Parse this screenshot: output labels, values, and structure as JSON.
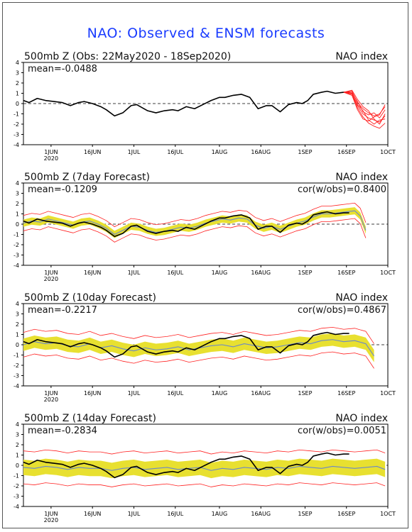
{
  "page_title": "NAO: Observed & ENSM forecasts",
  "colors": {
    "title": "#1a3cff",
    "observed": "#000000",
    "forecast_members": "#ff2020",
    "ensemble_mean": "#6a88c8",
    "spread": "#e8e030"
  },
  "chart_data": [
    {
      "type": "line",
      "title": "500mb Z (Obs: 22May2020 - 18Sep2020)",
      "right_label": "NAO index",
      "mean_label": "mean=-0.0488",
      "cor_label": "",
      "ylim": [
        -4,
        4
      ],
      "yticks": [
        "4",
        "3",
        "2",
        "1",
        "0",
        "-1",
        "-2",
        "-3",
        "-4"
      ],
      "x_ticks": [
        "1JUN",
        "16JUN",
        "1JUL",
        "16JUL",
        "1AUG",
        "16AUG",
        "1SEP",
        "16SEP",
        "1OCT"
      ],
      "x_year": "2020",
      "x_range_days": [
        0,
        132
      ],
      "series": [
        {
          "role": "observed",
          "x": [
            0,
            2,
            5,
            8,
            11,
            14,
            17,
            20,
            22,
            25,
            28,
            30,
            33,
            36,
            39,
            41,
            43,
            45,
            48,
            51,
            54,
            56,
            59,
            62,
            65,
            68,
            71,
            73,
            76,
            79,
            82,
            85,
            88,
            90,
            93,
            96,
            99,
            101,
            103,
            105,
            108,
            110,
            113,
            116,
            118
          ],
          "y": [
            0.3,
            0.1,
            0.5,
            0.3,
            0.2,
            0.1,
            -0.2,
            0.1,
            0.2,
            0.0,
            -0.3,
            -0.6,
            -1.2,
            -0.9,
            -0.2,
            -0.1,
            -0.4,
            -0.7,
            -0.9,
            -0.7,
            -0.6,
            -0.7,
            -0.3,
            -0.5,
            -0.1,
            0.3,
            0.6,
            0.6,
            0.8,
            0.9,
            0.6,
            -0.5,
            -0.2,
            -0.2,
            -0.8,
            -0.1,
            0.1,
            0.0,
            0.3,
            0.9,
            1.1,
            1.2,
            1.0,
            1.1,
            1.1
          ]
        },
        {
          "role": "forecast_members",
          "x": [
            116,
            119,
            121,
            123,
            125,
            127,
            129,
            131
          ],
          "y": [
            1.1,
            1.0,
            -0.2,
            -1.0,
            -1.4,
            -1.6,
            -1.8,
            -1.2
          ]
        },
        {
          "role": "forecast_members",
          "x": [
            116,
            119,
            121,
            123,
            125,
            127,
            129,
            131
          ],
          "y": [
            1.1,
            1.2,
            0.1,
            -0.5,
            -0.9,
            -1.2,
            -1.0,
            -0.3
          ]
        },
        {
          "role": "forecast_members",
          "x": [
            116,
            119,
            121,
            123,
            125,
            127,
            129,
            131
          ],
          "y": [
            1.1,
            0.9,
            -0.4,
            -1.3,
            -1.9,
            -2.2,
            -2.4,
            -1.9
          ]
        },
        {
          "role": "forecast_members",
          "x": [
            116,
            119,
            121,
            123,
            125,
            127,
            129,
            131
          ],
          "y": [
            1.1,
            1.1,
            0.2,
            -0.8,
            -1.1,
            -0.9,
            -1.4,
            -0.6
          ]
        },
        {
          "role": "forecast_members",
          "x": [
            116,
            119,
            121,
            123,
            125,
            127,
            129,
            131
          ],
          "y": [
            1.1,
            1.0,
            -0.1,
            -0.7,
            -1.6,
            -2.0,
            -1.6,
            -1.5
          ]
        },
        {
          "role": "forecast_members",
          "x": [
            116,
            119,
            121,
            123,
            125,
            127,
            129,
            131
          ],
          "y": [
            1.1,
            1.3,
            0.4,
            -0.3,
            -0.7,
            -1.5,
            -2.0,
            -1.0
          ]
        },
        {
          "role": "forecast_members",
          "x": [
            116,
            119,
            121,
            123,
            125,
            127,
            129,
            131
          ],
          "y": [
            1.1,
            0.8,
            -0.6,
            -1.5,
            -1.7,
            -1.3,
            -1.1,
            -0.1
          ]
        }
      ]
    },
    {
      "type": "line",
      "title": "500mb Z (7day Forecast)",
      "right_label": "NAO index",
      "mean_label": "mean=-0.1209",
      "cor_label": "cor(w/obs)=0.8400",
      "ylim": [
        -4,
        4
      ],
      "yticks": [
        "4",
        "3",
        "2",
        "1",
        "0",
        "-1",
        "-2",
        "-3",
        "-4"
      ],
      "x_ticks": [
        "1JUN",
        "16JUN",
        "1JUL",
        "16JUL",
        "1AUG",
        "16AUG",
        "1SEP",
        "16SEP",
        "1OCT"
      ],
      "x_year": "2020",
      "x_range_days": [
        0,
        132
      ],
      "spread_width": 0.35,
      "member_offset": 0.75,
      "series": [
        {
          "role": "ensemble_mean",
          "x": [
            0,
            3,
            6,
            9,
            12,
            15,
            18,
            21,
            24,
            27,
            30,
            33,
            36,
            39,
            42,
            45,
            48,
            51,
            54,
            57,
            60,
            63,
            66,
            69,
            72,
            75,
            78,
            81,
            84,
            87,
            90,
            93,
            96,
            99,
            102,
            105,
            108,
            111,
            114,
            117,
            120,
            122,
            124
          ],
          "y": [
            0.1,
            0.3,
            0.2,
            0.5,
            0.3,
            0.1,
            -0.1,
            0.2,
            0.3,
            0.0,
            -0.4,
            -1.0,
            -0.6,
            -0.2,
            -0.3,
            -0.6,
            -0.8,
            -0.7,
            -0.5,
            -0.3,
            -0.4,
            -0.2,
            0.1,
            0.3,
            0.5,
            0.4,
            0.6,
            0.5,
            -0.1,
            -0.4,
            -0.2,
            -0.5,
            -0.2,
            0.1,
            0.3,
            0.7,
            1.0,
            1.0,
            1.1,
            1.2,
            1.3,
            0.8,
            -0.6
          ]
        },
        {
          "role": "observed",
          "x": [
            0,
            2,
            5,
            8,
            11,
            14,
            17,
            20,
            22,
            25,
            28,
            30,
            33,
            36,
            39,
            41,
            43,
            45,
            48,
            51,
            54,
            56,
            59,
            62,
            65,
            68,
            71,
            73,
            76,
            79,
            82,
            85,
            88,
            90,
            93,
            96,
            99,
            101,
            103,
            105,
            108,
            110,
            113,
            116,
            118
          ],
          "y": [
            0.3,
            0.1,
            0.5,
            0.3,
            0.2,
            0.1,
            -0.2,
            0.1,
            0.2,
            0.0,
            -0.3,
            -0.6,
            -1.2,
            -0.9,
            -0.2,
            -0.1,
            -0.4,
            -0.7,
            -0.9,
            -0.7,
            -0.6,
            -0.7,
            -0.3,
            -0.5,
            -0.1,
            0.3,
            0.6,
            0.6,
            0.8,
            0.9,
            0.6,
            -0.5,
            -0.2,
            -0.2,
            -0.8,
            -0.1,
            0.1,
            0.0,
            0.3,
            0.9,
            1.1,
            1.2,
            1.0,
            1.1,
            1.1
          ]
        }
      ]
    },
    {
      "type": "line",
      "title": "500mb Z (10day Forecast)",
      "right_label": "NAO index",
      "mean_label": "mean=-0.2217",
      "cor_label": "cor(w/obs)=0.4867",
      "ylim": [
        -4,
        4
      ],
      "yticks": [
        "4",
        "3",
        "2",
        "1",
        "0",
        "-1",
        "-2",
        "-3",
        "-4"
      ],
      "x_ticks": [
        "1JUN",
        "16JUN",
        "1JUL",
        "16JUL",
        "1AUG",
        "16AUG",
        "1SEP",
        "16SEP",
        "1OCT"
      ],
      "x_year": "2020",
      "x_range_days": [
        0,
        132
      ],
      "spread_width": 0.6,
      "member_offset": 1.2,
      "series": [
        {
          "role": "ensemble_mean",
          "x": [
            0,
            4,
            8,
            12,
            16,
            20,
            24,
            28,
            32,
            36,
            40,
            44,
            48,
            52,
            56,
            60,
            64,
            68,
            72,
            76,
            80,
            84,
            88,
            92,
            96,
            100,
            104,
            108,
            112,
            116,
            120,
            124,
            127
          ],
          "y": [
            0.0,
            0.3,
            0.1,
            0.2,
            -0.1,
            -0.2,
            0.1,
            -0.3,
            -0.1,
            -0.4,
            -0.6,
            -0.3,
            -0.5,
            -0.4,
            -0.2,
            -0.5,
            -0.3,
            -0.1,
            0.0,
            -0.2,
            0.1,
            -0.1,
            -0.3,
            -0.2,
            0.0,
            0.2,
            0.1,
            0.4,
            0.5,
            0.3,
            0.4,
            0.1,
            -1.1
          ]
        },
        {
          "role": "observed",
          "x": [
            0,
            2,
            5,
            8,
            11,
            14,
            17,
            20,
            22,
            25,
            28,
            30,
            33,
            36,
            39,
            41,
            43,
            45,
            48,
            51,
            54,
            56,
            59,
            62,
            65,
            68,
            71,
            73,
            76,
            79,
            82,
            85,
            88,
            90,
            93,
            96,
            99,
            101,
            103,
            105,
            108,
            110,
            113,
            116,
            118
          ],
          "y": [
            0.3,
            0.1,
            0.5,
            0.3,
            0.2,
            0.1,
            -0.2,
            0.1,
            0.2,
            0.0,
            -0.3,
            -0.6,
            -1.2,
            -0.9,
            -0.2,
            -0.1,
            -0.4,
            -0.7,
            -0.9,
            -0.7,
            -0.6,
            -0.7,
            -0.3,
            -0.5,
            -0.1,
            0.3,
            0.6,
            0.6,
            0.8,
            0.9,
            0.6,
            -0.5,
            -0.2,
            -0.2,
            -0.8,
            -0.1,
            0.1,
            0.0,
            0.3,
            0.9,
            1.1,
            1.2,
            1.0,
            1.1,
            1.1
          ]
        }
      ]
    },
    {
      "type": "line",
      "title": "500mb Z (14day Forecast)",
      "right_label": "NAO index",
      "mean_label": "mean=-0.2834",
      "cor_label": "cor(w/obs)=0.0051",
      "ylim": [
        -4,
        4
      ],
      "yticks": [
        "4",
        "3",
        "2",
        "1",
        "0",
        "-1",
        "-2",
        "-3",
        "-4"
      ],
      "x_ticks": [
        "1JUN",
        "16JUN",
        "1JUL",
        "16JUL",
        "1AUG",
        "16AUG",
        "1SEP",
        "16SEP",
        "1OCT"
      ],
      "x_year": "2020",
      "x_range_days": [
        0,
        132
      ],
      "spread_width": 0.75,
      "member_offset": 1.6,
      "series": [
        {
          "role": "ensemble_mean",
          "x": [
            0,
            4,
            8,
            12,
            16,
            20,
            24,
            28,
            32,
            36,
            40,
            44,
            48,
            52,
            56,
            60,
            64,
            68,
            72,
            76,
            80,
            84,
            88,
            92,
            96,
            100,
            104,
            108,
            112,
            116,
            120,
            124,
            128,
            131
          ],
          "y": [
            -0.2,
            -0.3,
            -0.1,
            -0.2,
            -0.4,
            -0.2,
            -0.3,
            -0.3,
            -0.5,
            -0.3,
            -0.2,
            -0.4,
            -0.3,
            -0.2,
            -0.4,
            -0.3,
            -0.2,
            -0.5,
            -0.3,
            -0.4,
            -0.2,
            -0.3,
            -0.4,
            -0.2,
            -0.3,
            -0.1,
            -0.2,
            -0.3,
            -0.1,
            -0.2,
            -0.3,
            -0.2,
            -0.1,
            -0.4
          ]
        },
        {
          "role": "observed",
          "x": [
            0,
            2,
            5,
            8,
            11,
            14,
            17,
            20,
            22,
            25,
            28,
            30,
            33,
            36,
            39,
            41,
            43,
            45,
            48,
            51,
            54,
            56,
            59,
            62,
            65,
            68,
            71,
            73,
            76,
            79,
            82,
            85,
            88,
            90,
            93,
            96,
            99,
            101,
            103,
            105,
            108,
            110,
            113,
            116,
            118
          ],
          "y": [
            0.3,
            0.1,
            0.5,
            0.3,
            0.2,
            0.1,
            -0.2,
            0.1,
            0.2,
            0.0,
            -0.3,
            -0.6,
            -1.2,
            -0.9,
            -0.2,
            -0.1,
            -0.4,
            -0.7,
            -0.9,
            -0.7,
            -0.6,
            -0.7,
            -0.3,
            -0.5,
            -0.1,
            0.3,
            0.6,
            0.6,
            0.8,
            0.9,
            0.6,
            -0.5,
            -0.2,
            -0.2,
            -0.8,
            -0.1,
            0.1,
            0.0,
            0.3,
            0.9,
            1.1,
            1.2,
            1.0,
            1.1,
            1.1
          ]
        }
      ]
    }
  ]
}
